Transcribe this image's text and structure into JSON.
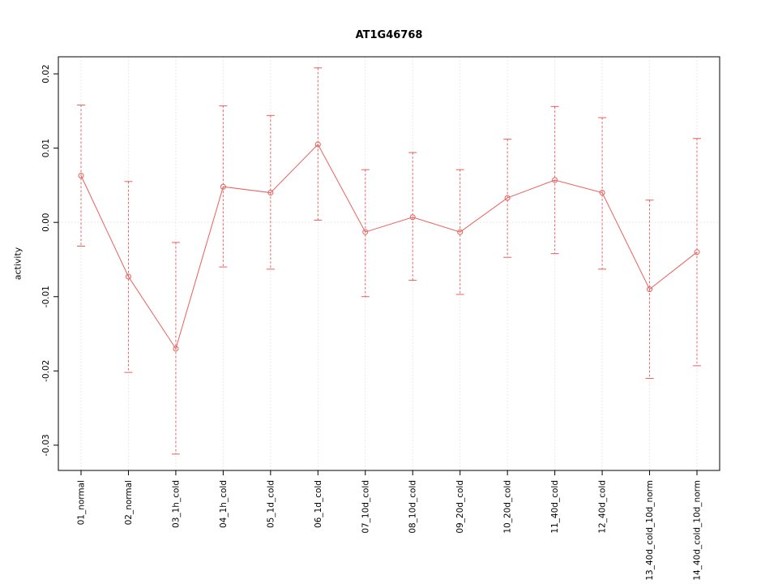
{
  "chart_data": {
    "type": "line",
    "title": "AT1G46768",
    "xlabel": "",
    "ylabel": "activity",
    "ylim": [
      -0.0334,
      0.0223
    ],
    "yticks": [
      0.02,
      0.01,
      0,
      -0.01,
      -0.02,
      -0.03
    ],
    "grid": "vertical dotted gridlines at each category plus dotted zero line",
    "legend": "none",
    "marker": "open-circle",
    "error_bars": true,
    "colors": {
      "series": "#e8605c",
      "grid": "#e2e2e2",
      "axis": "#000000",
      "background": "#ffffff"
    },
    "categories": [
      "01_normal",
      "02_normal",
      "03_1h_cold",
      "04_1h_cold",
      "05_1d_cold",
      "06_1d_cold",
      "07_10d_cold",
      "08_10d_cold",
      "09_20d_cold",
      "10_20d_cold",
      "11_40d_cold",
      "12_40d_cold",
      "13_40d_cold_10d_norm",
      "14_40d_cold_10d_norm"
    ],
    "values": [
      0.0063,
      -0.0073,
      -0.017,
      0.0048,
      0.004,
      0.0105,
      -0.0013,
      0.0007,
      -0.0013,
      0.0033,
      0.0057,
      0.004,
      -0.009,
      -0.004
    ],
    "err_high": [
      0.0158,
      0.0055,
      -0.0027,
      0.0157,
      0.0144,
      0.0208,
      0.0071,
      0.0094,
      0.0071,
      0.0112,
      0.0156,
      0.0141,
      0.003,
      0.0113
    ],
    "err_low": [
      -0.0032,
      -0.0202,
      -0.0312,
      -0.006,
      -0.0063,
      0.0003,
      -0.01,
      -0.0078,
      -0.0097,
      -0.0047,
      -0.0042,
      -0.0063,
      -0.021,
      -0.0193
    ]
  }
}
